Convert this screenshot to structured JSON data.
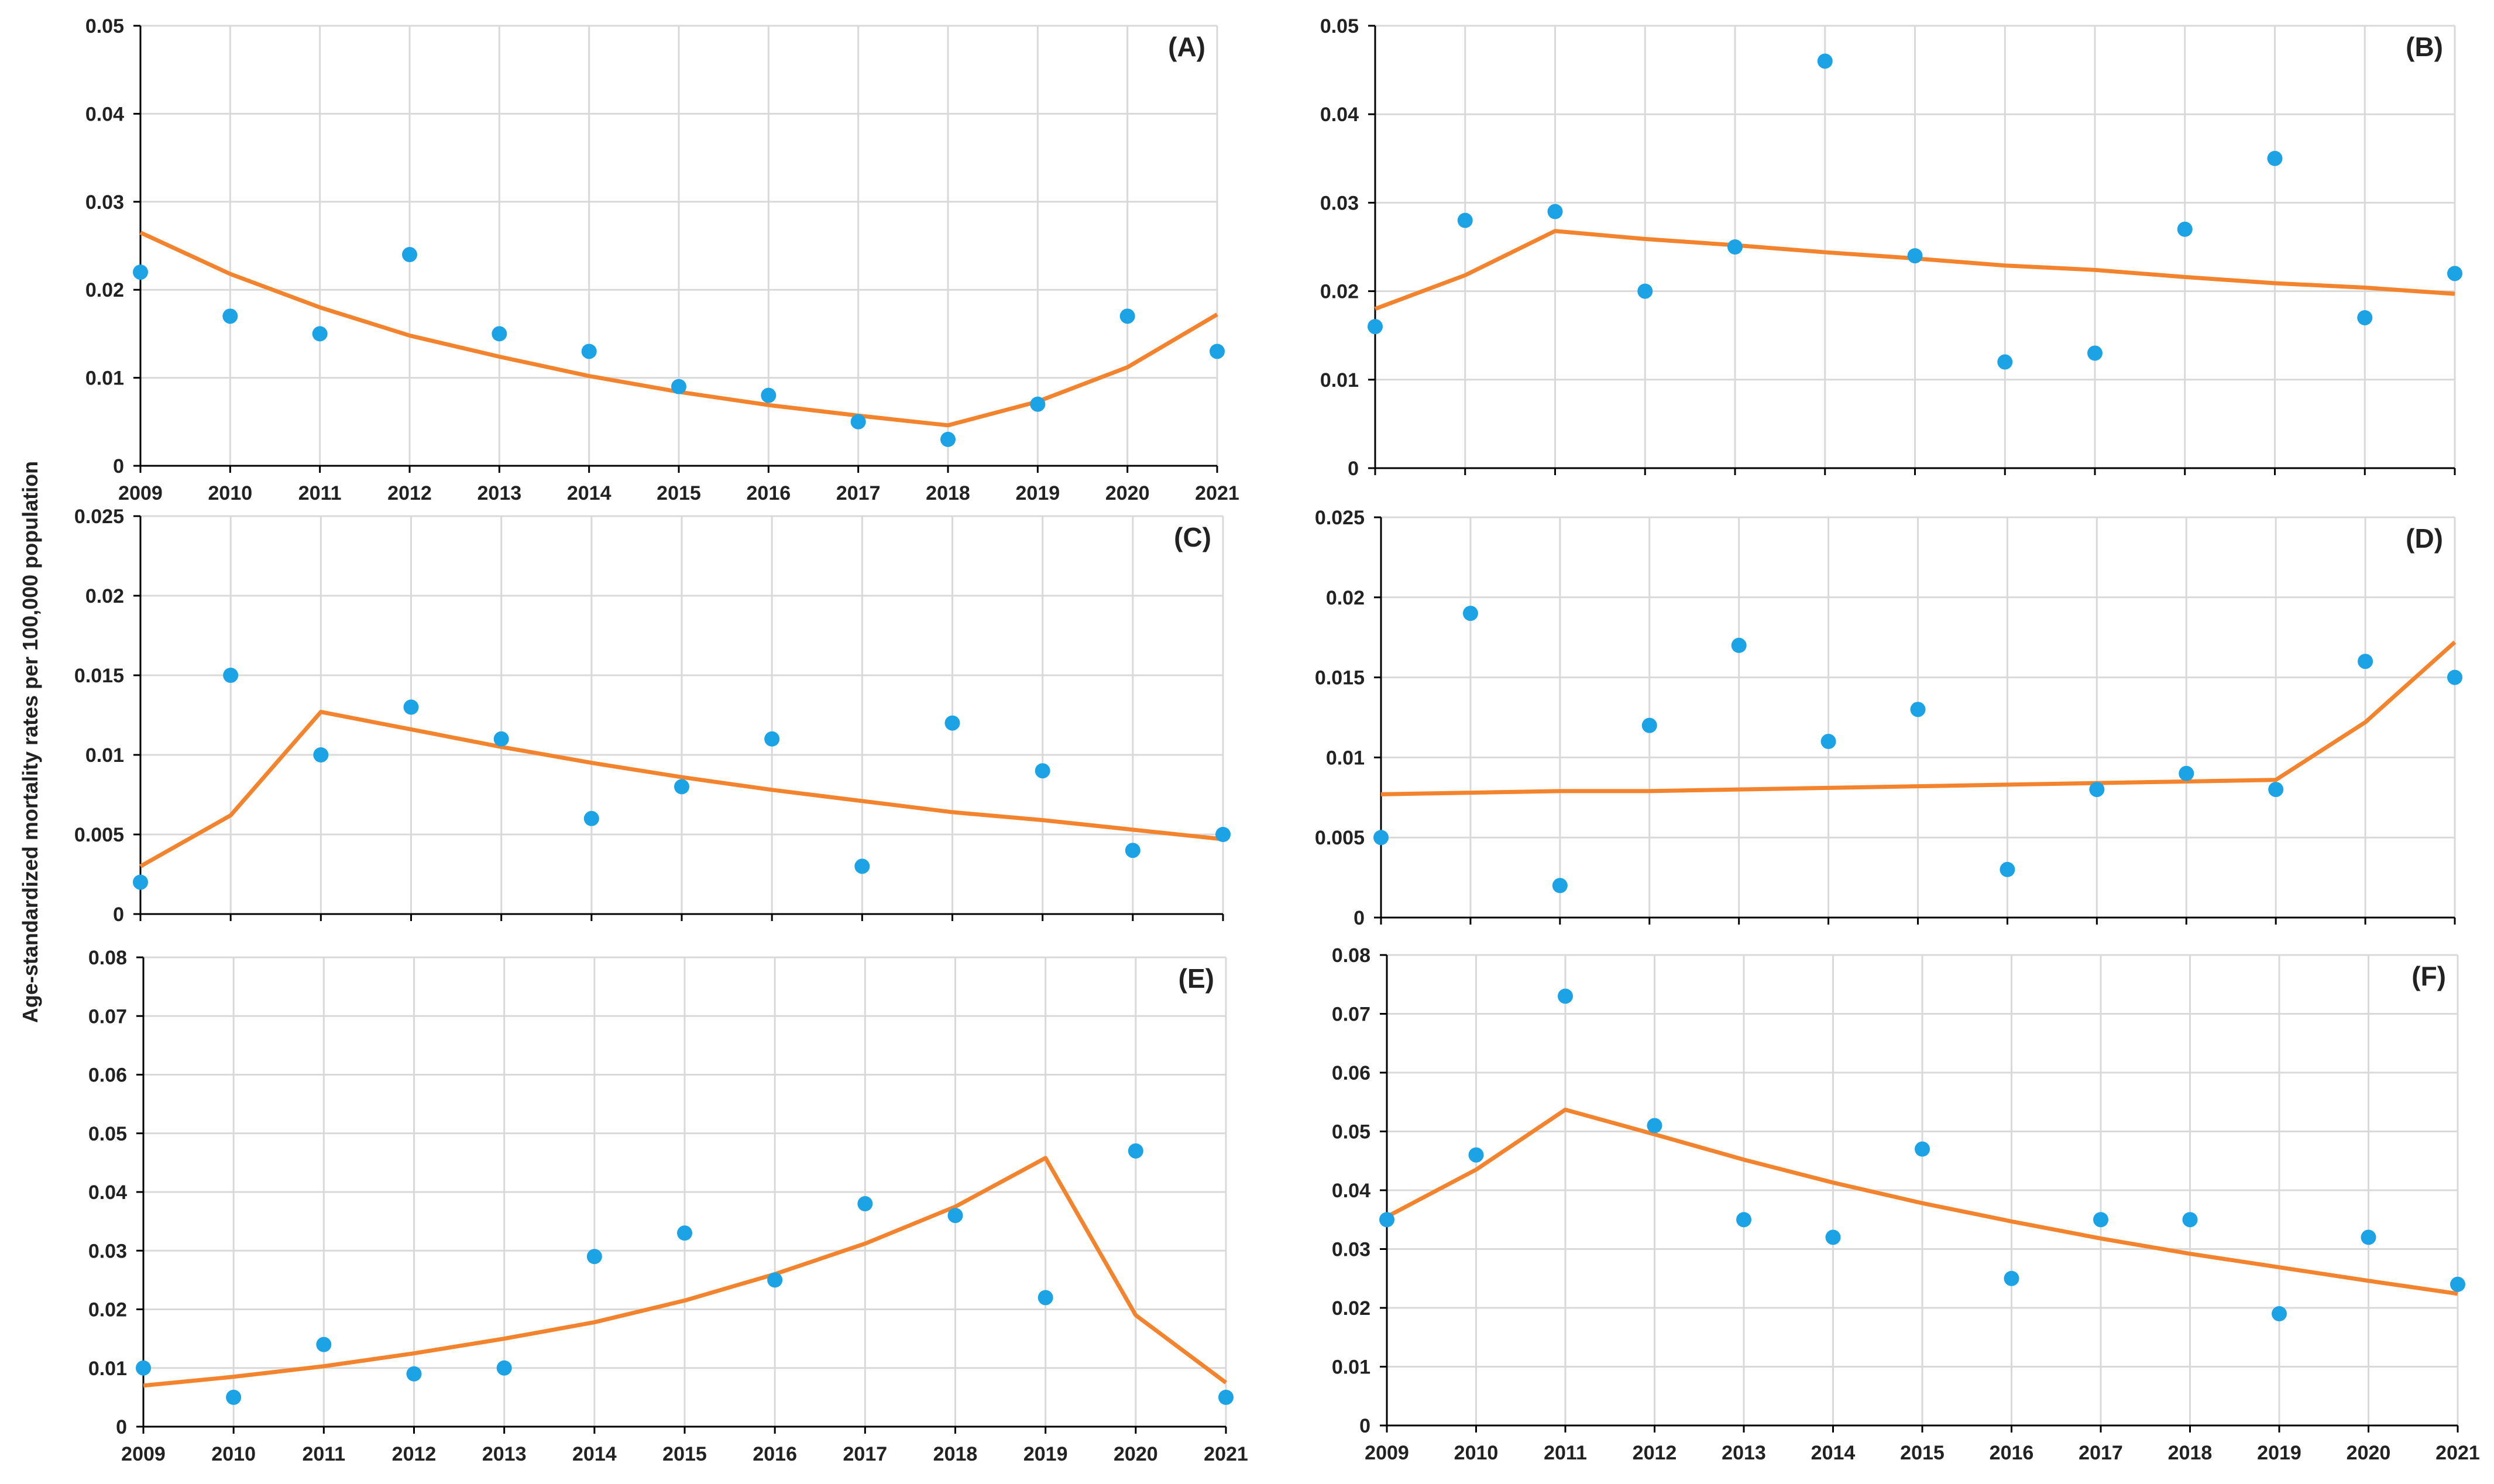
{
  "figure": {
    "ylabel": "Age-standardized mortality rates per 100,000  population",
    "colors": {
      "observed": "#1ba3e6",
      "fitted": "#f4832d",
      "grid": "#d9d9d9",
      "axis": "#000000",
      "text": "#222222"
    }
  },
  "chart_data": [
    {
      "type": "scatter+line",
      "label": "(A)",
      "x": [
        2009,
        2010,
        2011,
        2012,
        2013,
        2014,
        2015,
        2016,
        2017,
        2018,
        2019,
        2020,
        2021
      ],
      "series": [
        {
          "name": "observed",
          "kind": "scatter",
          "values": [
            0.022,
            0.017,
            0.015,
            0.024,
            0.015,
            0.013,
            0.009,
            0.008,
            0.005,
            0.003,
            0.007,
            0.017,
            0.013
          ]
        },
        {
          "name": "fitted",
          "kind": "line",
          "values": [
            0.0265,
            0.0218,
            0.018,
            0.0148,
            0.0124,
            0.0102,
            0.0084,
            0.0069,
            0.0057,
            0.0046,
            0.0073,
            0.0112,
            0.0172
          ]
        }
      ],
      "ylim": [
        0,
        0.05
      ],
      "yticks": [
        "0",
        "0.01",
        "0.02",
        "0.03",
        "0.04",
        "0.05"
      ],
      "xticks": [
        "2009",
        "2010",
        "2011",
        "2012",
        "2013",
        "2014",
        "2015",
        "2016",
        "2017",
        "2018",
        "2019",
        "2020",
        "2021"
      ]
    },
    {
      "type": "scatter+line",
      "label": "(B)",
      "x": [
        2009,
        2010,
        2011,
        2012,
        2013,
        2014,
        2015,
        2016,
        2017,
        2018,
        2019,
        2020,
        2021
      ],
      "series": [
        {
          "name": "observed",
          "kind": "scatter",
          "values": [
            0.016,
            0.028,
            0.029,
            0.02,
            0.025,
            0.046,
            0.024,
            0.012,
            0.013,
            0.027,
            0.035,
            0.017,
            0.022
          ]
        },
        {
          "name": "fitted",
          "kind": "line",
          "values": [
            0.018,
            0.0218,
            0.0268,
            0.0259,
            0.0252,
            0.0244,
            0.0237,
            0.0229,
            0.0224,
            0.0216,
            0.0209,
            0.0204,
            0.0197
          ]
        }
      ],
      "ylim": [
        0,
        0.05
      ],
      "yticks": [
        "0",
        "0.01",
        "0.02",
        "0.03",
        "0.04",
        "0.05"
      ],
      "xticks": []
    },
    {
      "type": "scatter+line",
      "label": "(C)",
      "x": [
        2009,
        2010,
        2011,
        2012,
        2013,
        2014,
        2015,
        2016,
        2017,
        2018,
        2019,
        2020,
        2021
      ],
      "series": [
        {
          "name": "observed",
          "kind": "scatter",
          "values": [
            0.002,
            0.015,
            0.01,
            0.013,
            0.011,
            0.006,
            0.008,
            0.011,
            0.003,
            0.012,
            0.009,
            0.004,
            0.005
          ]
        },
        {
          "name": "fitted",
          "kind": "line",
          "values": [
            0.003,
            0.0062,
            0.0127,
            0.0116,
            0.0105,
            0.0095,
            0.0086,
            0.0078,
            0.0071,
            0.0064,
            0.0059,
            0.0053,
            0.0047
          ]
        }
      ],
      "ylim": [
        0,
        0.025
      ],
      "yticks": [
        "0",
        "0.005",
        "0.01",
        "0.015",
        "0.02",
        "0.025"
      ],
      "xticks": []
    },
    {
      "type": "scatter+line",
      "label": "(D)",
      "x": [
        2009,
        2010,
        2011,
        2012,
        2013,
        2014,
        2015,
        2016,
        2017,
        2018,
        2019,
        2020,
        2021
      ],
      "series": [
        {
          "name": "observed",
          "kind": "scatter",
          "values": [
            0.005,
            0.019,
            0.002,
            0.012,
            0.017,
            0.011,
            0.013,
            0.003,
            0.008,
            0.009,
            0.008,
            0.016,
            0.015
          ]
        },
        {
          "name": "fitted",
          "kind": "line",
          "values": [
            0.0077,
            0.0078,
            0.0079,
            0.0079,
            0.008,
            0.0081,
            0.0082,
            0.0083,
            0.0084,
            0.0085,
            0.0086,
            0.0122,
            0.0172
          ]
        }
      ],
      "ylim": [
        0,
        0.025
      ],
      "yticks": [
        "0",
        "0.005",
        "0.01",
        "0.015",
        "0.02",
        "0.025"
      ],
      "xticks": []
    },
    {
      "type": "scatter+line",
      "label": "(E)",
      "x": [
        2009,
        2010,
        2011,
        2012,
        2013,
        2014,
        2015,
        2016,
        2017,
        2018,
        2019,
        2020,
        2021
      ],
      "series": [
        {
          "name": "observed",
          "kind": "scatter",
          "values": [
            0.01,
            0.005,
            0.014,
            0.009,
            0.01,
            0.029,
            0.033,
            0.025,
            0.038,
            0.036,
            0.022,
            0.047,
            0.005
          ]
        },
        {
          "name": "fitted",
          "kind": "line",
          "values": [
            0.007,
            0.0085,
            0.0103,
            0.0125,
            0.015,
            0.0178,
            0.0215,
            0.026,
            0.0312,
            0.0375,
            0.0458,
            0.019,
            0.0075
          ]
        }
      ],
      "ylim": [
        0,
        0.08
      ],
      "yticks": [
        "0",
        "0.01",
        "0.02",
        "0.03",
        "0.04",
        "0.05",
        "0.06",
        "0.07",
        "0.08"
      ],
      "xticks": [
        "2009",
        "2010",
        "2011",
        "2012",
        "2013",
        "2014",
        "2015",
        "2016",
        "2017",
        "2018",
        "2019",
        "2020",
        "2021"
      ]
    },
    {
      "type": "scatter+line",
      "label": "(F)",
      "x": [
        2009,
        2010,
        2011,
        2012,
        2013,
        2014,
        2015,
        2016,
        2017,
        2018,
        2019,
        2020,
        2021
      ],
      "series": [
        {
          "name": "observed",
          "kind": "scatter",
          "values": [
            0.035,
            0.046,
            0.073,
            0.051,
            0.035,
            0.032,
            0.047,
            0.025,
            0.035,
            0.035,
            0.019,
            0.032,
            0.024
          ]
        },
        {
          "name": "fitted",
          "kind": "line",
          "values": [
            0.0355,
            0.0435,
            0.0537,
            0.0495,
            0.0452,
            0.0413,
            0.0378,
            0.0347,
            0.0318,
            0.0292,
            0.0269,
            0.0246,
            0.0224
          ]
        }
      ],
      "ylim": [
        0,
        0.08
      ],
      "yticks": [
        "0",
        "0.01",
        "0.02",
        "0.03",
        "0.04",
        "0.05",
        "0.06",
        "0.07",
        "0.08"
      ],
      "xticks": [
        "2009",
        "2010",
        "2011",
        "2012",
        "2013",
        "2014",
        "2015",
        "2016",
        "2017",
        "2018",
        "2019",
        "2020",
        "2021"
      ]
    }
  ]
}
